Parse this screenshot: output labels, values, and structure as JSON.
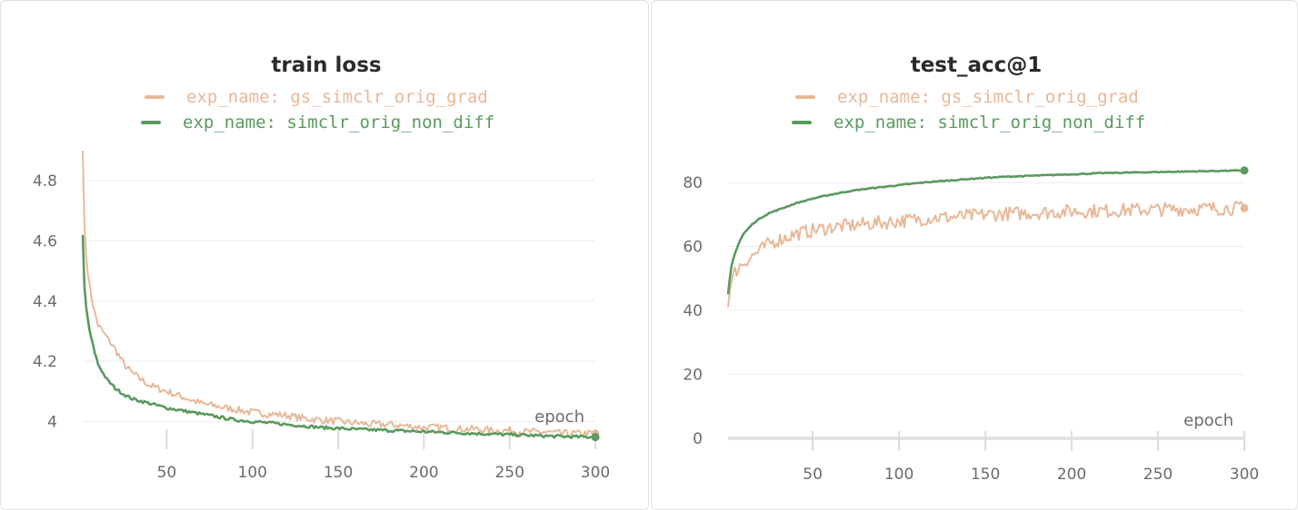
{
  "chart_data": [
    {
      "type": "line",
      "title": "train loss",
      "xlabel": "epoch",
      "ylabel": "",
      "xlim": [
        1,
        300
      ],
      "ylim": [
        3.95,
        4.9
      ],
      "xticks": [
        50,
        100,
        150,
        200,
        250,
        300
      ],
      "yticks": [
        4,
        4.2,
        4.4,
        4.6,
        4.8
      ],
      "ytick_labels": [
        "4",
        "4.2",
        "4.4",
        "4.6",
        "4.8"
      ],
      "grid": true,
      "legend_position": "top-center",
      "series": [
        {
          "name": "exp_name: gs_simclr_orig_grad",
          "color": "#e8b898",
          "x": [
            1,
            2,
            3,
            5,
            8,
            10,
            15,
            20,
            25,
            30,
            40,
            50,
            60,
            70,
            80,
            90,
            100,
            110,
            120,
            130,
            140,
            150,
            160,
            170,
            180,
            190,
            200,
            210,
            220,
            230,
            240,
            250,
            260,
            270,
            280,
            290,
            300
          ],
          "y": [
            4.9,
            4.65,
            4.55,
            4.45,
            4.36,
            4.32,
            4.28,
            4.24,
            4.19,
            4.16,
            4.12,
            4.1,
            4.08,
            4.06,
            4.05,
            4.04,
            4.03,
            4.025,
            4.02,
            4.01,
            4.005,
            4.0,
            3.995,
            3.99,
            3.99,
            3.985,
            3.98,
            3.98,
            3.975,
            3.975,
            3.97,
            3.97,
            3.965,
            3.965,
            3.96,
            3.96,
            3.96
          ]
        },
        {
          "name": "exp_name: simclr_orig_non_diff",
          "color": "#5a9a5e",
          "x": [
            1,
            2,
            3,
            5,
            8,
            10,
            15,
            20,
            25,
            30,
            40,
            50,
            60,
            70,
            80,
            90,
            100,
            110,
            120,
            130,
            140,
            150,
            160,
            170,
            180,
            190,
            200,
            210,
            220,
            230,
            240,
            250,
            260,
            270,
            280,
            290,
            300
          ],
          "y": [
            4.62,
            4.45,
            4.38,
            4.3,
            4.23,
            4.19,
            4.14,
            4.11,
            4.09,
            4.075,
            4.06,
            4.045,
            4.035,
            4.025,
            4.015,
            4.005,
            4.0,
            3.995,
            3.99,
            3.985,
            3.98,
            3.977,
            3.974,
            3.972,
            3.97,
            3.968,
            3.966,
            3.964,
            3.962,
            3.96,
            3.958,
            3.956,
            3.954,
            3.952,
            3.95,
            3.949,
            3.948
          ]
        }
      ]
    },
    {
      "type": "line",
      "title": "test_acc@1",
      "xlabel": "epoch",
      "ylabel": "",
      "xlim": [
        1,
        300
      ],
      "ylim": [
        0,
        90
      ],
      "xticks": [
        50,
        100,
        150,
        200,
        250,
        300
      ],
      "yticks": [
        0,
        20,
        40,
        60,
        80
      ],
      "ytick_labels": [
        "0",
        "20",
        "40",
        "60",
        "80"
      ],
      "grid": true,
      "legend_position": "top-center",
      "series": [
        {
          "name": "exp_name: gs_simclr_orig_grad",
          "color": "#e8b898",
          "x": [
            1,
            2,
            3,
            5,
            8,
            10,
            15,
            20,
            25,
            30,
            40,
            50,
            60,
            70,
            80,
            90,
            100,
            110,
            120,
            130,
            140,
            150,
            160,
            170,
            180,
            190,
            200,
            210,
            220,
            230,
            240,
            250,
            260,
            270,
            280,
            290,
            300
          ],
          "y": [
            41,
            46,
            49,
            52,
            54,
            55,
            57,
            59,
            61,
            62,
            64,
            65,
            66,
            66.5,
            67,
            67.5,
            68,
            68.5,
            69,
            69.2,
            69.5,
            70,
            70.2,
            70.4,
            70.6,
            70.8,
            71,
            71.1,
            71.2,
            71.4,
            71.5,
            71.6,
            71.7,
            71.8,
            71.9,
            72,
            72
          ]
        },
        {
          "name": "exp_name: simclr_orig_non_diff",
          "color": "#5a9a5e",
          "x": [
            1,
            2,
            3,
            5,
            8,
            10,
            15,
            20,
            25,
            30,
            40,
            50,
            60,
            70,
            80,
            90,
            100,
            110,
            120,
            130,
            140,
            150,
            160,
            170,
            180,
            190,
            200,
            210,
            220,
            230,
            240,
            250,
            260,
            270,
            280,
            290,
            300
          ],
          "y": [
            45,
            50,
            54,
            58,
            62,
            64,
            67,
            69,
            70.5,
            71.5,
            73.5,
            75,
            76.2,
            77.2,
            78,
            78.6,
            79.2,
            79.8,
            80.3,
            80.7,
            81.1,
            81.5,
            81.8,
            82,
            82.2,
            82.4,
            82.6,
            82.8,
            83,
            83.1,
            83.2,
            83.3,
            83.4,
            83.5,
            83.6,
            83.7,
            83.8
          ]
        }
      ]
    }
  ]
}
